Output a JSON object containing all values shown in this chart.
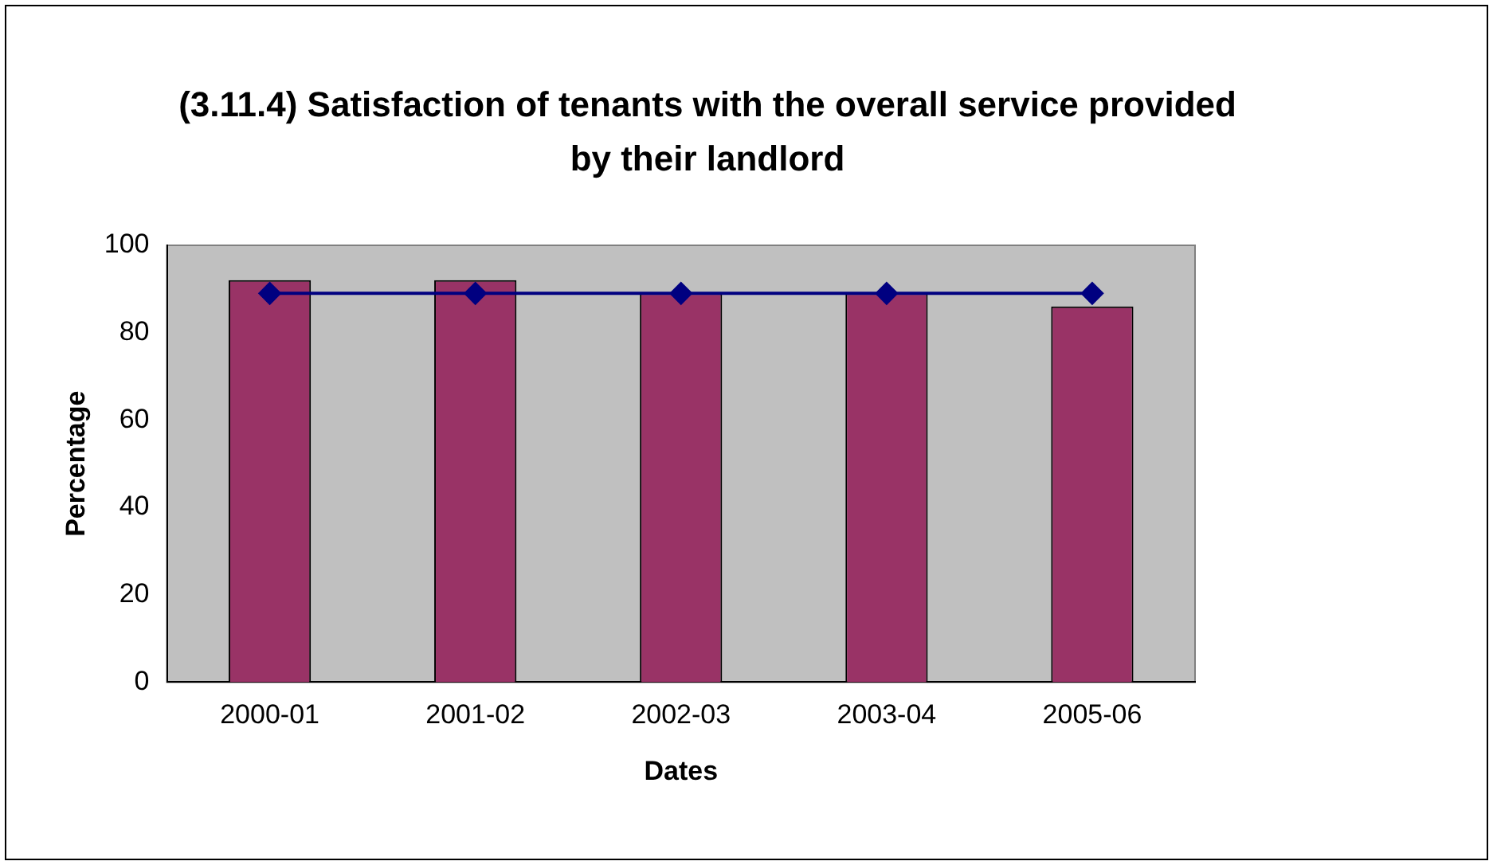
{
  "chart_data": {
    "type": "bar",
    "title": "(3.11.4) Satisfaction of tenants with the overall service provided by their landlord",
    "xlabel": "Dates",
    "ylabel": "Percentage",
    "categories": [
      "2000-01",
      "2001-02",
      "2002-03",
      "2003-04",
      "2005-06"
    ],
    "series": [
      {
        "color": "#993366",
        "values": [
          92,
          92,
          89,
          89,
          86
        ]
      },
      {
        "type": "line",
        "color": "#000080",
        "values": [
          89,
          89,
          89,
          89,
          89
        ],
        "marker": "diamond"
      }
    ],
    "ylim": [
      0,
      100
    ],
    "yticks": [
      0,
      20,
      40,
      60,
      80,
      100
    ],
    "grid": false,
    "legend": false
  }
}
